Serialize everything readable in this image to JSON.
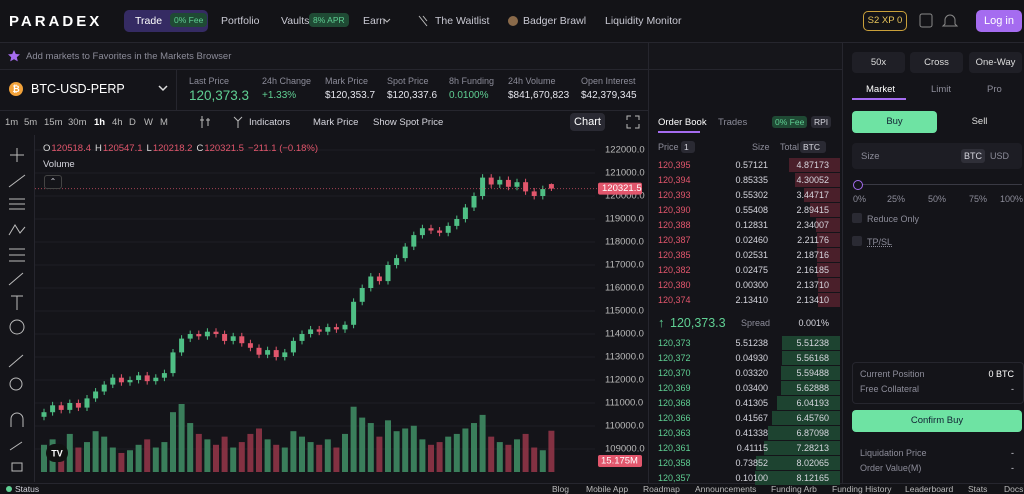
{
  "header": {
    "logo": "PARADEX",
    "nav": [
      {
        "label": "Trade",
        "badge": "0% Fee"
      },
      {
        "label": "Portfolio"
      },
      {
        "label": "Vaults",
        "badge": "8% APR"
      },
      {
        "label": "Earn"
      },
      {
        "label": "The Waitlist"
      },
      {
        "label": "Badger Brawl"
      },
      {
        "label": "Liquidity Monitor"
      }
    ],
    "xp": "S2 XP 0",
    "login": "Log in"
  },
  "banner": "Add markets to Favorites in the Markets Browser",
  "market": {
    "symbol": "BTC-USD-PERP",
    "stats": [
      {
        "label": "Last Price",
        "value": "120,373.3"
      },
      {
        "label": "24h Change",
        "value": "+1.33%"
      },
      {
        "label": "Mark Price",
        "value": "$120,353.7"
      },
      {
        "label": "Spot Price",
        "value": "$120,337.6"
      },
      {
        "label": "8h Funding",
        "value": "0.0100%"
      },
      {
        "label": "24h Volume",
        "value": "$841,670,823"
      },
      {
        "label": "Open Interest",
        "value": "$42,379,345"
      }
    ]
  },
  "toolbar": {
    "intervals": [
      "1m",
      "5m",
      "15m",
      "30m",
      "1h",
      "4h",
      "D",
      "W",
      "M"
    ],
    "indicators": "Indicators",
    "mark_price": "Mark Price",
    "spot": "Show Spot Price",
    "chart": "Chart"
  },
  "chart": {
    "ohlc": [
      {
        "key": "O",
        "value": "120518.4"
      },
      {
        "key": "H",
        "value": "120547.1"
      },
      {
        "key": "L",
        "value": "120218.2"
      },
      {
        "key": "C",
        "value": "120321.5"
      }
    ],
    "change": "−211.1 (−0.18%)",
    "volume_label": "Volume",
    "last_tag": "120321.5",
    "volume_tag": "15.175M",
    "ylim": [
      109000,
      122000
    ],
    "yticks": [
      {
        "value": 122000,
        "label": "122000.0"
      },
      {
        "value": 121000,
        "label": "121000.0"
      },
      {
        "value": 120000,
        "label": "120000.0"
      },
      {
        "value": 119000,
        "label": "119000.0"
      },
      {
        "value": 118000,
        "label": "118000.0"
      },
      {
        "value": 117000,
        "label": "117000.0"
      },
      {
        "value": 116000,
        "label": "116000.0"
      },
      {
        "value": 115000,
        "label": "115000.0"
      },
      {
        "value": 114000,
        "label": "114000.0"
      },
      {
        "value": 113000,
        "label": "113000.0"
      },
      {
        "value": 112000,
        "label": "112000.0"
      },
      {
        "value": 111000,
        "label": "111000.0"
      },
      {
        "value": 110000,
        "label": "110000.0"
      },
      {
        "value": 109000,
        "label": "109000.0"
      }
    ],
    "candles": [
      [
        110400,
        110750,
        110250,
        110600
      ],
      [
        110600,
        111050,
        110450,
        110900
      ],
      [
        110900,
        111050,
        110550,
        110700
      ],
      [
        110700,
        111150,
        110550,
        111000
      ],
      [
        111000,
        111150,
        110650,
        110800
      ],
      [
        110800,
        111350,
        110650,
        111200
      ],
      [
        111200,
        111650,
        111050,
        111500
      ],
      [
        111500,
        111950,
        111350,
        111800
      ],
      [
        111800,
        112250,
        111650,
        112100
      ],
      [
        112100,
        112250,
        111750,
        111900
      ],
      [
        111900,
        112150,
        111750,
        112000
      ],
      [
        112000,
        112350,
        111850,
        112200
      ],
      [
        112200,
        112350,
        111800,
        111950
      ],
      [
        111950,
        112250,
        111800,
        112100
      ],
      [
        112100,
        112450,
        111950,
        112300
      ],
      [
        112300,
        113350,
        112150,
        113200
      ],
      [
        113200,
        113950,
        113050,
        113800
      ],
      [
        113800,
        114150,
        113650,
        114000
      ],
      [
        114000,
        114150,
        113750,
        113900
      ],
      [
        113900,
        114250,
        113750,
        114100
      ],
      [
        114100,
        114250,
        113850,
        114000
      ],
      [
        114000,
        114150,
        113550,
        113700
      ],
      [
        113700,
        114050,
        113550,
        113900
      ],
      [
        113900,
        114050,
        113450,
        113600
      ],
      [
        113600,
        113750,
        113250,
        113400
      ],
      [
        113400,
        113550,
        112950,
        113100
      ],
      [
        113100,
        113450,
        112950,
        113300
      ],
      [
        113300,
        113450,
        112850,
        113000
      ],
      [
        113000,
        113350,
        112850,
        113200
      ],
      [
        113200,
        113850,
        113050,
        113700
      ],
      [
        113700,
        114150,
        113550,
        114000
      ],
      [
        114000,
        114350,
        113850,
        114200
      ],
      [
        114200,
        114350,
        113950,
        114100
      ],
      [
        114100,
        114450,
        113950,
        114300
      ],
      [
        114300,
        114450,
        114050,
        114200
      ],
      [
        114200,
        114550,
        114050,
        114400
      ],
      [
        114400,
        115550,
        114250,
        115400
      ],
      [
        115400,
        116150,
        115250,
        116000
      ],
      [
        116000,
        116650,
        115850,
        116500
      ],
      [
        116500,
        116650,
        116150,
        116300
      ],
      [
        116300,
        117150,
        116150,
        117000
      ],
      [
        117000,
        117450,
        116850,
        117300
      ],
      [
        117300,
        117950,
        117150,
        117800
      ],
      [
        117800,
        118450,
        117650,
        118300
      ],
      [
        118300,
        118750,
        118150,
        118600
      ],
      [
        118600,
        118750,
        118350,
        118500
      ],
      [
        118500,
        118650,
        118250,
        118400
      ],
      [
        118400,
        118850,
        118250,
        118700
      ],
      [
        118700,
        119150,
        118550,
        119000
      ],
      [
        119000,
        119650,
        118850,
        119500
      ],
      [
        119500,
        120150,
        119350,
        120000
      ],
      [
        120000,
        120950,
        119850,
        120800
      ],
      [
        120800,
        120950,
        120350,
        120500
      ],
      [
        120500,
        120850,
        120350,
        120700
      ],
      [
        120700,
        120850,
        120250,
        120400
      ],
      [
        120400,
        120750,
        120250,
        120600
      ],
      [
        120600,
        120750,
        120050,
        120200
      ],
      [
        120200,
        120350,
        119850,
        120000
      ],
      [
        120000,
        120450,
        119850,
        120300
      ],
      [
        120518.4,
        120547.1,
        120218.2,
        120321.5
      ]
    ],
    "volumes": [
      10,
      12,
      8,
      14,
      9,
      11,
      15,
      13,
      9,
      7,
      8,
      10,
      12,
      9,
      11,
      22,
      25,
      18,
      14,
      12,
      10,
      13,
      9,
      11,
      14,
      16,
      12,
      10,
      9,
      15,
      13,
      11,
      10,
      12,
      9,
      14,
      24,
      20,
      18,
      13,
      19,
      15,
      16,
      17,
      12,
      10,
      11,
      13,
      14,
      16,
      18,
      21,
      13,
      11,
      10,
      12,
      14,
      9,
      8,
      15.175
    ]
  },
  "orderbook": {
    "tabs": [
      "Order Book",
      "Trades"
    ],
    "fee": "0% Fee",
    "rpi": "RPI",
    "cols": {
      "price": "Price",
      "group": "1",
      "size": "Size",
      "total": "Total",
      "unit": "BTC"
    },
    "asks": [
      [
        "120,395",
        "0.57121",
        "4.87173"
      ],
      [
        "120,394",
        "0.85335",
        "4.30052"
      ],
      [
        "120,393",
        "0.55302",
        "3.44717"
      ],
      [
        "120,390",
        "0.55408",
        "2.89415"
      ],
      [
        "120,388",
        "0.12831",
        "2.34007"
      ],
      [
        "120,387",
        "0.02460",
        "2.21176"
      ],
      [
        "120,385",
        "0.02531",
        "2.18716"
      ],
      [
        "120,382",
        "0.02475",
        "2.16185"
      ],
      [
        "120,380",
        "0.00300",
        "2.13710"
      ],
      [
        "120,374",
        "2.13410",
        "2.13410"
      ]
    ],
    "mid": "120,373.3",
    "spread_label": "Spread",
    "spread": "0.001%",
    "bids": [
      [
        "120,373",
        "5.51238",
        "5.51238"
      ],
      [
        "120,372",
        "0.04930",
        "5.56168"
      ],
      [
        "120,370",
        "0.03320",
        "5.59488"
      ],
      [
        "120,369",
        "0.03400",
        "5.62888"
      ],
      [
        "120,368",
        "0.41305",
        "6.04193"
      ],
      [
        "120,366",
        "0.41567",
        "6.45760"
      ],
      [
        "120,363",
        "0.41338",
        "6.87098"
      ],
      [
        "120,361",
        "0.41115",
        "7.28213"
      ],
      [
        "120,358",
        "0.73852",
        "8.02065"
      ],
      [
        "120,357",
        "0.10100",
        "8.12165"
      ]
    ]
  },
  "order": {
    "leverage": "50x",
    "margin": "Cross",
    "mode": "One-Way",
    "types": [
      "Market",
      "Limit",
      "Pro"
    ],
    "buy": "Buy",
    "sell": "Sell",
    "size": "Size",
    "units": [
      "BTC",
      "USD"
    ],
    "pcts": [
      "0%",
      "25%",
      "50%",
      "75%",
      "100%"
    ],
    "reduce": "Reduce Only",
    "tpsl": "TP/SL",
    "position_label": "Current Position",
    "position": "0 BTC",
    "collateral_label": "Free Collateral",
    "collateral": "-",
    "confirm": "Confirm Buy",
    "liq_label": "Liquidation Price",
    "liq": "-",
    "value_label": "Order Value(M)",
    "value": "-"
  },
  "footer": {
    "status": "Status",
    "links": [
      "Blog",
      "Mobile App",
      "Roadmap",
      "Announcements",
      "Funding Arb",
      "Funding History",
      "Leaderboard",
      "Stats",
      "Docs"
    ]
  }
}
